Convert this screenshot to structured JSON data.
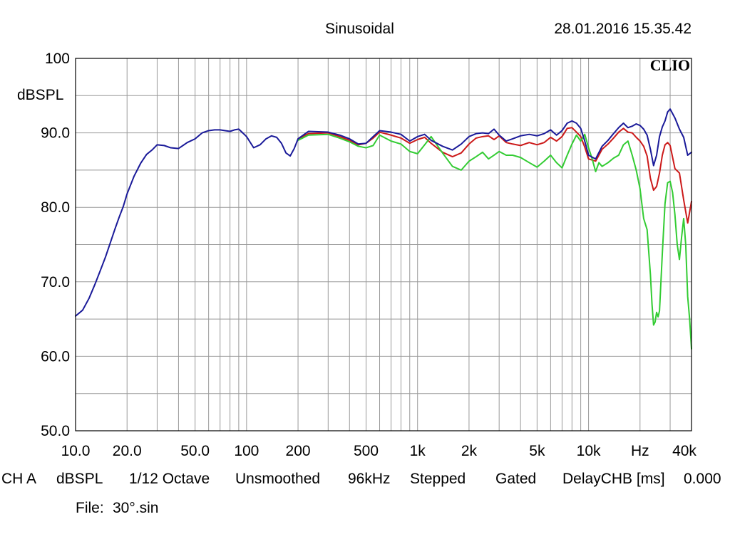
{
  "header": {
    "mode": "Sinusoidal",
    "timestamp": "28.01.2016 15.35.42",
    "brand": "CLIO"
  },
  "footer": {
    "channel": "CH A",
    "unit": "dBSPL",
    "resolution": "1/12 Octave",
    "smoothing": "Unsmoothed",
    "sample_rate": "96kHz",
    "sweep": "Stepped",
    "window": "Gated",
    "delay_label": "DelayCHB [ms]",
    "delay_value": "0.000",
    "file_label": "File:",
    "file_name": "30°.sin"
  },
  "colors": {
    "grid": "#999999",
    "frame": "#000000",
    "series_blue": "#1a1a99",
    "series_red": "#cc1a1a",
    "series_green": "#33cc33"
  },
  "chart_data": {
    "type": "line",
    "x_scale": "log",
    "xlim": [
      10,
      40000
    ],
    "ylim": [
      50,
      100
    ],
    "ylabel": "dBSPL",
    "grid": true,
    "x_ticks": [
      {
        "value": 10,
        "label": "10.0"
      },
      {
        "value": 20,
        "label": "20.0"
      },
      {
        "value": 50,
        "label": "50.0"
      },
      {
        "value": 100,
        "label": "100"
      },
      {
        "value": 200,
        "label": "200"
      },
      {
        "value": 500,
        "label": "500"
      },
      {
        "value": 1000,
        "label": "1k"
      },
      {
        "value": 2000,
        "label": "2k"
      },
      {
        "value": 5000,
        "label": "5k"
      },
      {
        "value": 10000,
        "label": "10k"
      },
      {
        "value": 20000,
        "label": "Hz"
      },
      {
        "value": 40000,
        "label": "40k"
      }
    ],
    "y_ticks": [
      {
        "value": 100,
        "label": "100"
      },
      {
        "value": 90,
        "label": "90.0"
      },
      {
        "value": 80,
        "label": "80.0"
      },
      {
        "value": 70,
        "label": "70.0"
      },
      {
        "value": 60,
        "label": "60.0"
      },
      {
        "value": 50,
        "label": "50.0"
      }
    ],
    "series": [
      {
        "color": "#cc1a1a",
        "x": [
          200,
          230,
          300,
          350,
          400,
          450,
          500,
          550,
          600,
          700,
          800,
          900,
          1000,
          1100,
          1200,
          1400,
          1600,
          1800,
          2000,
          2200,
          2400,
          2600,
          2800,
          3000,
          3300,
          3600,
          4000,
          4500,
          5000,
          5500,
          6000,
          6500,
          7000,
          7500,
          8000,
          8500,
          9000,
          9500,
          10000,
          11000,
          12000,
          13000,
          14000,
          15000,
          16000,
          17000,
          18000,
          19000,
          20000,
          21000,
          22000,
          23000,
          24000,
          25000,
          26000,
          27000,
          28000,
          29000,
          30000,
          32000,
          34000,
          36000,
          38000,
          40000
        ],
        "y": [
          89.2,
          89.9,
          90.0,
          89.5,
          89.0,
          88.4,
          88.6,
          89.3,
          90.1,
          89.7,
          89.3,
          88.6,
          89.1,
          89.4,
          88.6,
          87.4,
          86.8,
          87.3,
          88.5,
          89.3,
          89.5,
          89.6,
          89.1,
          89.6,
          88.7,
          88.5,
          88.3,
          88.7,
          88.4,
          88.7,
          89.4,
          88.9,
          89.5,
          90.6,
          90.7,
          90.1,
          89.5,
          88.1,
          86.5,
          86.2,
          87.8,
          88.5,
          89.3,
          90.1,
          90.6,
          90.1,
          90.0,
          89.4,
          88.9,
          88.2,
          86.9,
          83.9,
          82.3,
          82.8,
          84.6,
          87.0,
          88.4,
          88.7,
          88.3,
          85.2,
          84.6,
          81.0,
          77.9,
          80.8
        ]
      },
      {
        "color": "#33cc33",
        "x": [
          200,
          230,
          300,
          350,
          400,
          450,
          500,
          550,
          600,
          700,
          800,
          900,
          1000,
          1100,
          1200,
          1400,
          1600,
          1800,
          2000,
          2200,
          2400,
          2600,
          2800,
          3000,
          3300,
          3600,
          4000,
          4500,
          5000,
          5500,
          6000,
          6500,
          7000,
          7500,
          8000,
          8500,
          9000,
          9500,
          10000,
          10500,
          11000,
          11500,
          12000,
          13000,
          14000,
          15000,
          16000,
          17000,
          18000,
          19000,
          20000,
          21000,
          22000,
          23000,
          23500,
          24000,
          24500,
          25000,
          25500,
          26000,
          27000,
          28000,
          29000,
          30000,
          31000,
          32000,
          33000,
          34000,
          35000,
          36000,
          37000,
          38000,
          39000,
          40000
        ],
        "y": [
          89.0,
          89.7,
          89.8,
          89.3,
          88.8,
          88.2,
          88.0,
          88.3,
          89.7,
          88.9,
          88.5,
          87.5,
          87.2,
          88.4,
          89.5,
          87.3,
          85.5,
          85.0,
          86.2,
          86.8,
          87.4,
          86.5,
          87.0,
          87.5,
          87.0,
          87.0,
          86.7,
          86.0,
          85.4,
          86.2,
          87.0,
          86.0,
          85.3,
          87.0,
          88.5,
          89.7,
          88.9,
          89.8,
          88.0,
          86.5,
          84.8,
          86.0,
          85.5,
          86.0,
          86.6,
          87.0,
          88.4,
          88.9,
          87.0,
          85.0,
          82.5,
          78.5,
          77.0,
          71.0,
          67.0,
          64.2,
          64.6,
          65.9,
          65.3,
          66.1,
          73.8,
          80.5,
          83.3,
          83.5,
          82.0,
          79.0,
          75.0,
          73.0,
          76.0,
          78.5,
          75.0,
          68.0,
          65.0,
          61.0
        ]
      },
      {
        "color": "#1a1a99",
        "x": [
          10,
          11,
          12,
          13,
          14,
          15,
          16,
          17,
          18,
          19,
          20,
          22,
          24,
          26,
          28,
          30,
          33,
          36,
          40,
          45,
          50,
          55,
          60,
          65,
          70,
          75,
          80,
          85,
          90,
          95,
          100,
          110,
          120,
          130,
          140,
          150,
          160,
          170,
          180,
          190,
          200,
          230,
          300,
          350,
          400,
          450,
          500,
          550,
          600,
          700,
          800,
          900,
          1000,
          1100,
          1200,
          1400,
          1600,
          1800,
          2000,
          2200,
          2400,
          2600,
          2800,
          3000,
          3300,
          3600,
          4000,
          4500,
          5000,
          5500,
          6000,
          6500,
          7000,
          7500,
          8000,
          8500,
          9000,
          9500,
          10000,
          11000,
          12000,
          13000,
          14000,
          15000,
          16000,
          17000,
          18000,
          19000,
          20000,
          21000,
          22000,
          23000,
          24000,
          25000,
          26000,
          27000,
          28000,
          29000,
          30000,
          32000,
          34000,
          36000,
          38000,
          40000
        ],
        "y": [
          65.4,
          66.2,
          67.8,
          69.7,
          71.6,
          73.4,
          75.3,
          77.1,
          78.7,
          80.1,
          81.8,
          84.2,
          85.9,
          87.1,
          87.7,
          88.4,
          88.3,
          88.0,
          87.9,
          88.7,
          89.2,
          90.0,
          90.3,
          90.4,
          90.4,
          90.3,
          90.2,
          90.4,
          90.5,
          90.0,
          89.5,
          88.0,
          88.4,
          89.2,
          89.6,
          89.4,
          88.6,
          87.3,
          86.9,
          87.9,
          89.2,
          90.2,
          90.1,
          89.7,
          89.2,
          88.5,
          88.6,
          89.5,
          90.3,
          90.1,
          89.8,
          88.9,
          89.5,
          89.8,
          89.0,
          88.2,
          87.7,
          88.5,
          89.5,
          89.9,
          90.0,
          89.9,
          90.5,
          89.7,
          88.9,
          89.2,
          89.6,
          89.8,
          89.6,
          89.9,
          90.4,
          89.7,
          90.3,
          91.3,
          91.6,
          91.3,
          90.6,
          88.9,
          87.0,
          86.5,
          88.2,
          89.0,
          89.9,
          90.7,
          91.3,
          90.7,
          90.9,
          91.2,
          91.0,
          90.5,
          89.7,
          87.8,
          85.6,
          87.0,
          89.5,
          90.8,
          91.6,
          92.8,
          93.2,
          92.0,
          90.5,
          89.4,
          87.0,
          87.4
        ]
      }
    ]
  }
}
